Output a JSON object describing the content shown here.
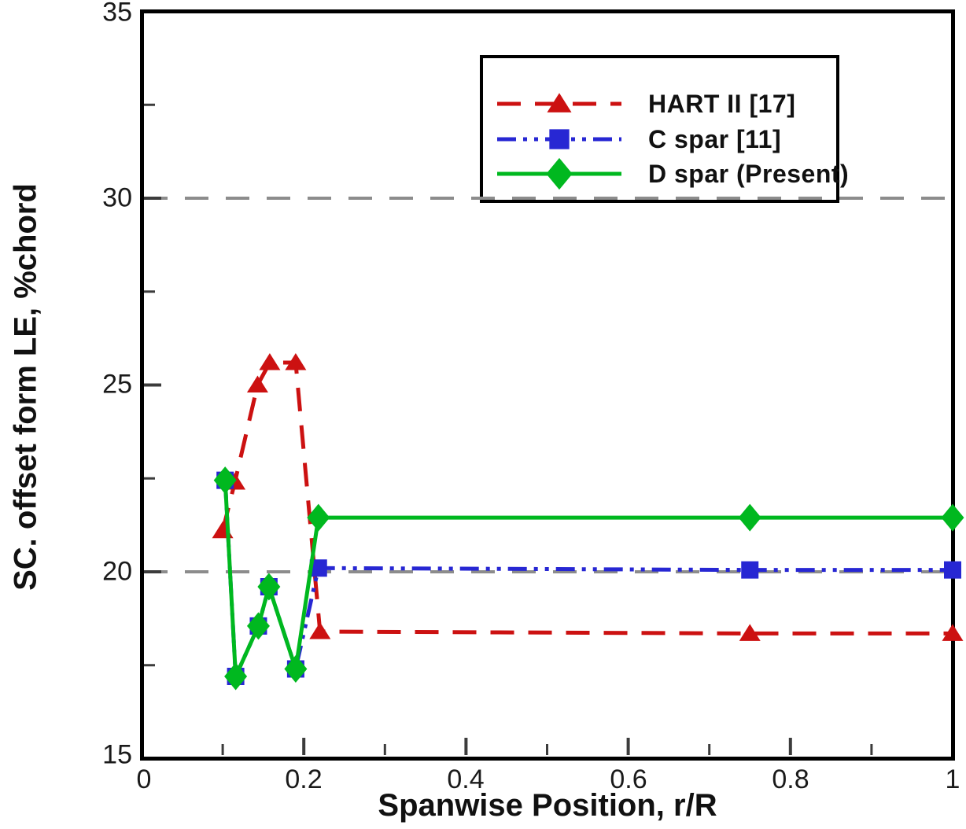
{
  "figure": {
    "background": "#ffffff"
  },
  "axes": {
    "x": {
      "title": "Spanwise Position, r/R",
      "range": [
        0,
        1
      ],
      "tick_values": [
        0,
        0.2,
        0.4,
        0.6,
        0.8,
        1
      ],
      "tick_labels": [
        "0",
        "0.2",
        "0.4",
        "0.6",
        "0.8",
        "1"
      ],
      "minor_tick_values": [
        0.1,
        0.3,
        0.5,
        0.7,
        0.9
      ]
    },
    "y": {
      "title": "SC. offset form LE, %chord",
      "range": [
        15,
        35
      ],
      "tick_values": [
        15,
        20,
        25,
        30,
        35
      ],
      "tick_labels": [
        "15",
        "20",
        "25",
        "30",
        "35"
      ],
      "minor_tick_values": [
        17.5,
        22.5,
        27.5,
        32.5
      ],
      "gridline_values": [
        20,
        30
      ]
    }
  },
  "colors": {
    "grid": "#8c8c8c",
    "frame": "#000000",
    "tick": "#3c3c3c",
    "text": "#1a1a1a"
  },
  "chart_data": {
    "type": "line",
    "title": "",
    "xlabel": "Spanwise Position, r/R",
    "ylabel": "SC. offset form LE, %chord",
    "xlim": [
      0,
      1
    ],
    "ylim": [
      15,
      35
    ],
    "grid": "horizontal dashed gridlines at y=20 and y=30",
    "legend_position": "upper right",
    "series": [
      {
        "name": "HART II [17]",
        "color": "#cc1111",
        "line_style": "dashed",
        "marker": "triangle-up",
        "points": [
          [
            0.1,
            21.1
          ],
          [
            0.115,
            22.4
          ],
          [
            0.143,
            25.0
          ],
          [
            0.158,
            25.6
          ],
          [
            0.19,
            25.6
          ],
          [
            0.22,
            18.4
          ],
          [
            0.75,
            18.35
          ],
          [
            1.0,
            18.35
          ]
        ]
      },
      {
        "name": "C spar [11]",
        "color": "#2727d3",
        "line_style": "dash-dot-dot",
        "marker": "square",
        "points": [
          [
            0.103,
            22.45
          ],
          [
            0.116,
            17.2
          ],
          [
            0.144,
            18.55
          ],
          [
            0.157,
            19.6
          ],
          [
            0.19,
            17.4
          ],
          [
            0.218,
            20.1
          ],
          [
            0.75,
            20.05
          ],
          [
            1.0,
            20.05
          ]
        ]
      },
      {
        "name": "D spar (Present)",
        "color": "#00b81f",
        "line_style": "solid",
        "marker": "diamond",
        "points": [
          [
            0.103,
            22.45
          ],
          [
            0.116,
            17.2
          ],
          [
            0.144,
            18.55
          ],
          [
            0.157,
            19.6
          ],
          [
            0.19,
            17.4
          ],
          [
            0.218,
            21.45
          ],
          [
            0.75,
            21.45
          ],
          [
            1.0,
            21.45
          ]
        ]
      }
    ]
  }
}
